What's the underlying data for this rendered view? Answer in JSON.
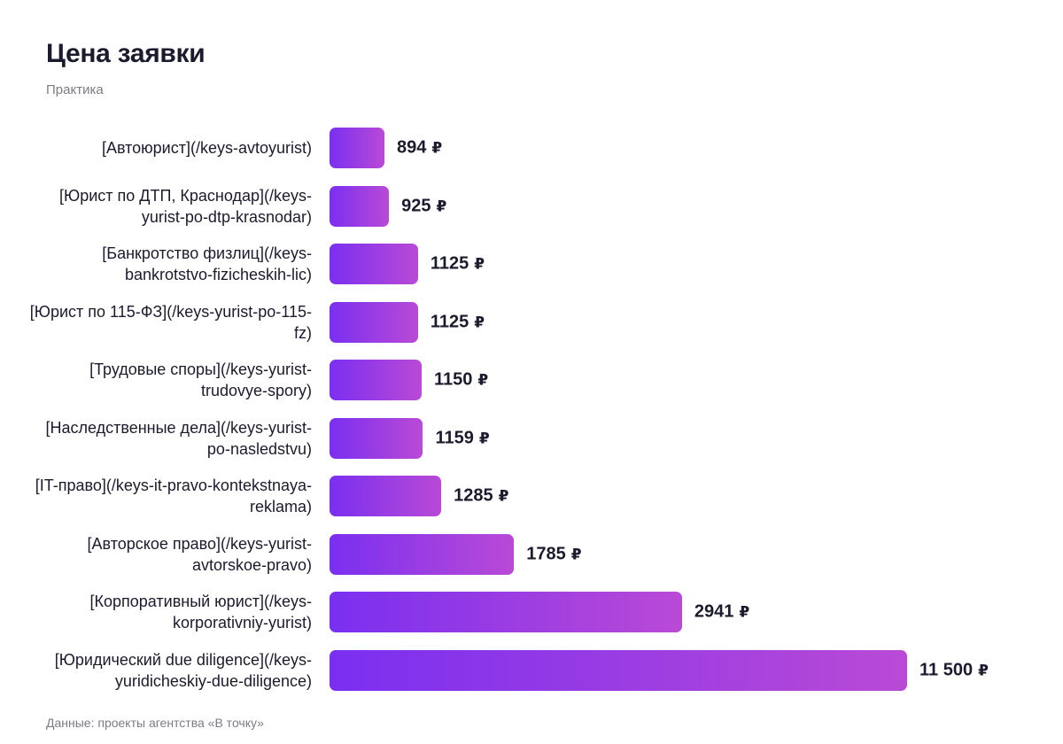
{
  "title": "Цена заявки",
  "subtitle": "Практика",
  "source": "Данные: проекты агентства «В точку»",
  "currency": "₽",
  "colors": {
    "bar_start": "#7a2ff0",
    "bar_end": "#b94ad6",
    "text": "#1c1b2e",
    "muted": "#7b7b86"
  },
  "chart_data": {
    "type": "bar",
    "orientation": "horizontal",
    "title": "Цена заявки",
    "subtitle": "Практика",
    "categories": [
      "[Автоюрист](/keys-avtoyurist)",
      "[Юрист по ДТП, Краснодар](/keys-yurist-po-dtp-krasnodar)",
      "[Банкротство физлиц](/keys-bankrotstvo-fizicheskih-lic)",
      "[Юрист по 115-ФЗ](/keys-yurist-po-115-fz)",
      "[Трудовые споры](/keys-yurist-trudovye-spory)",
      "[Наследственные дела](/keys-yurist-po-nasledstvu)",
      "[IT-право](/keys-it-pravo-kontekstnaya-reklama)",
      "[Авторское право](/keys-yurist-avtorskoe-pravo)",
      "[Корпоративный юрист](/keys-korporativniy-yurist)",
      "[Юридический due diligence](/keys-yuridicheskiy-due-diligence)"
    ],
    "values": [
      894,
      925,
      1125,
      1125,
      1150,
      1159,
      1285,
      1785,
      2941,
      11500
    ],
    "value_labels": [
      "894",
      "925",
      "1125",
      "1125",
      "1150",
      "1159",
      "1285",
      "1785",
      "2941",
      "11 500"
    ],
    "grid": false
  }
}
